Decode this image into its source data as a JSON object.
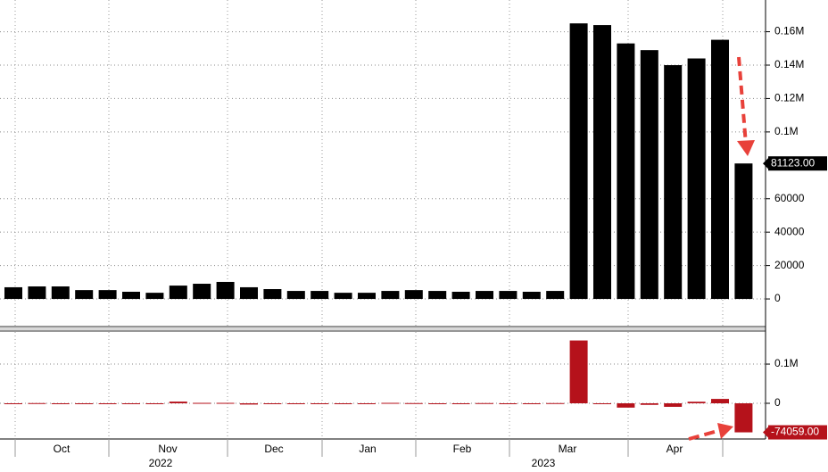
{
  "chart_data": [
    {
      "type": "bar",
      "color": "#000000",
      "grid": true,
      "categories": [
        null,
        null,
        null,
        null,
        null,
        null,
        null,
        null,
        null,
        null,
        null,
        null,
        null,
        null,
        null,
        null,
        null,
        null,
        null,
        null,
        null,
        null,
        null,
        null,
        null,
        null,
        null,
        null,
        null,
        null,
        null,
        null
      ],
      "values": [
        7000,
        7500,
        7500,
        5300,
        5300,
        4300,
        3700,
        8000,
        9100,
        10200,
        7000,
        5900,
        4800,
        4800,
        3700,
        3700,
        4800,
        5300,
        4800,
        4300,
        4800,
        4800,
        4300,
        4800,
        165000,
        164000,
        153000,
        149000,
        140000,
        144000,
        155182,
        81123
      ],
      "value_labels": [
        null,
        null,
        null,
        null,
        null,
        null,
        null,
        null,
        null,
        null,
        null,
        null,
        null,
        null,
        null,
        null,
        null,
        null,
        null,
        null,
        null,
        null,
        null,
        null,
        null,
        null,
        null,
        null,
        null,
        null,
        null,
        "81123.00"
      ],
      "ylim": [
        -16000,
        179000
      ],
      "yticks": [
        0,
        20000,
        40000,
        60000,
        {
          "value": 100000,
          "label": "0.1M"
        },
        {
          "value": 120000,
          "label": "0.12M"
        },
        {
          "value": 140000,
          "label": "0.14M"
        },
        {
          "value": 160000,
          "label": "0.16M"
        }
      ]
    },
    {
      "type": "bar",
      "color": "#b5121b",
      "grid": true,
      "categories": [
        null,
        null,
        null,
        null,
        null,
        null,
        null,
        null,
        null,
        null,
        null,
        null,
        null,
        null,
        null,
        null,
        null,
        null,
        null,
        null,
        null,
        null,
        null,
        null,
        null,
        null,
        null,
        null,
        null,
        null,
        null,
        null
      ],
      "values": [
        0,
        500,
        0,
        -2200,
        0,
        -1000,
        -600,
        4300,
        1100,
        1100,
        -3200,
        -1100,
        -1100,
        0,
        -1100,
        0,
        1100,
        500,
        -500,
        -500,
        500,
        0,
        -500,
        500,
        160200,
        -1000,
        -11000,
        -4000,
        -9000,
        4000,
        11182,
        -74059
      ],
      "value_labels": [
        null,
        null,
        null,
        null,
        null,
        null,
        null,
        null,
        null,
        null,
        null,
        null,
        null,
        null,
        null,
        null,
        null,
        null,
        null,
        null,
        null,
        null,
        null,
        null,
        null,
        null,
        null,
        null,
        null,
        null,
        null,
        "-74059.00"
      ],
      "ylim": [
        -91000,
        182000
      ],
      "yticks": [
        0,
        {
          "value": 100000,
          "label": "0.1M"
        }
      ],
      "month_labels": [
        "Oct",
        "Nov",
        "Dec",
        "Jan",
        "Feb",
        "Mar",
        "Apr"
      ],
      "year_labels": [
        "2022",
        "2023"
      ]
    }
  ]
}
